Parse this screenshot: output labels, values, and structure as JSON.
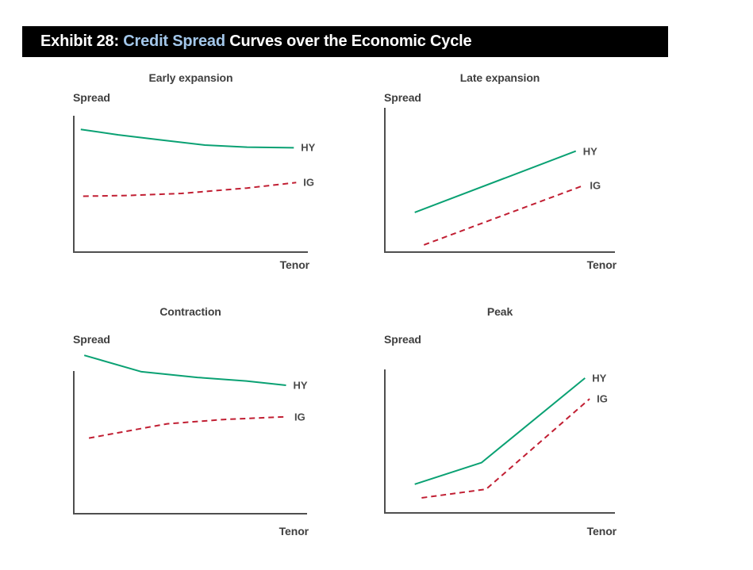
{
  "header": {
    "prefix": "Exhibit 28: ",
    "highlight": "Credit Spread",
    "suffix": " Curves over the Economic Cycle"
  },
  "colors": {
    "hy_line": "#0aa173",
    "ig_line": "#c11f33",
    "text": "#3f3f3f",
    "axis": "#4f4f4f",
    "header_bg": "#000000",
    "header_text": "#ffffff",
    "header_highlight": "#a3c7ea"
  },
  "chart_data": [
    {
      "type": "line",
      "title": "Early expansion",
      "ylabel": "Spread",
      "xlabel": "Tenor",
      "gridlines": false,
      "axes_numeric": false,
      "units": "relative level (conceptual chart, unlabeled axes, 0-100 of plot box)",
      "legend_position": "line-end-labels",
      "series": [
        {
          "name": "HY",
          "line": "solid",
          "color": "#0aa173",
          "x": [
            3,
            19,
            36,
            56,
            74,
            94
          ],
          "y": [
            90,
            86,
            82.5,
            78.5,
            77,
            76.5
          ]
        },
        {
          "name": "IG",
          "line": "dashed",
          "color": "#c11f33",
          "x": [
            4,
            23,
            46,
            74,
            95
          ],
          "y": [
            41,
            41.5,
            43,
            47,
            51
          ]
        }
      ]
    },
    {
      "type": "line",
      "title": "Late expansion",
      "ylabel": "Spread",
      "xlabel": "Tenor",
      "gridlines": false,
      "axes_numeric": false,
      "units": "relative level (conceptual chart, unlabeled axes, 0-100 of plot box)",
      "legend_position": "line-end-labels",
      "series": [
        {
          "name": "HY",
          "line": "solid",
          "color": "#0aa173",
          "x": [
            13,
            83
          ],
          "y": [
            27.5,
            70
          ]
        },
        {
          "name": "IG",
          "line": "dashed",
          "color": "#c11f33",
          "x": [
            17,
            86
          ],
          "y": [
            5,
            46
          ]
        }
      ]
    },
    {
      "type": "line",
      "title": "Contraction",
      "ylabel": "Spread",
      "xlabel": "Tenor",
      "gridlines": false,
      "axes_numeric": false,
      "units": "relative level (conceptual chart, unlabeled axes, 0-100 of plot box; HY starts above axis top)",
      "legend_position": "line-end-labels",
      "series": [
        {
          "name": "HY",
          "line": "solid",
          "color": "#0aa173",
          "x": [
            4.5,
            29,
            53,
            74,
            91
          ],
          "y": [
            111,
            99.5,
            95.5,
            93,
            90
          ]
        },
        {
          "name": "IG",
          "line": "dashed",
          "color": "#c11f33",
          "x": [
            6.5,
            40,
            64,
            91.5
          ],
          "y": [
            53,
            63,
            66,
            68
          ]
        }
      ]
    },
    {
      "type": "line",
      "title": "Peak",
      "ylabel": "Spread",
      "xlabel": "Tenor",
      "gridlines": false,
      "axes_numeric": false,
      "units": "relative level (conceptual chart, unlabeled axes, 0-100 of plot box)",
      "legend_position": "line-end-labels",
      "series": [
        {
          "name": "HY",
          "line": "solid",
          "color": "#0aa173",
          "x": [
            13,
            42,
            87
          ],
          "y": [
            20,
            35,
            94
          ]
        },
        {
          "name": "IG",
          "line": "dashed",
          "color": "#c11f33",
          "x": [
            16,
            44,
            89
          ],
          "y": [
            10.5,
            16.5,
            79.5
          ]
        }
      ]
    }
  ]
}
